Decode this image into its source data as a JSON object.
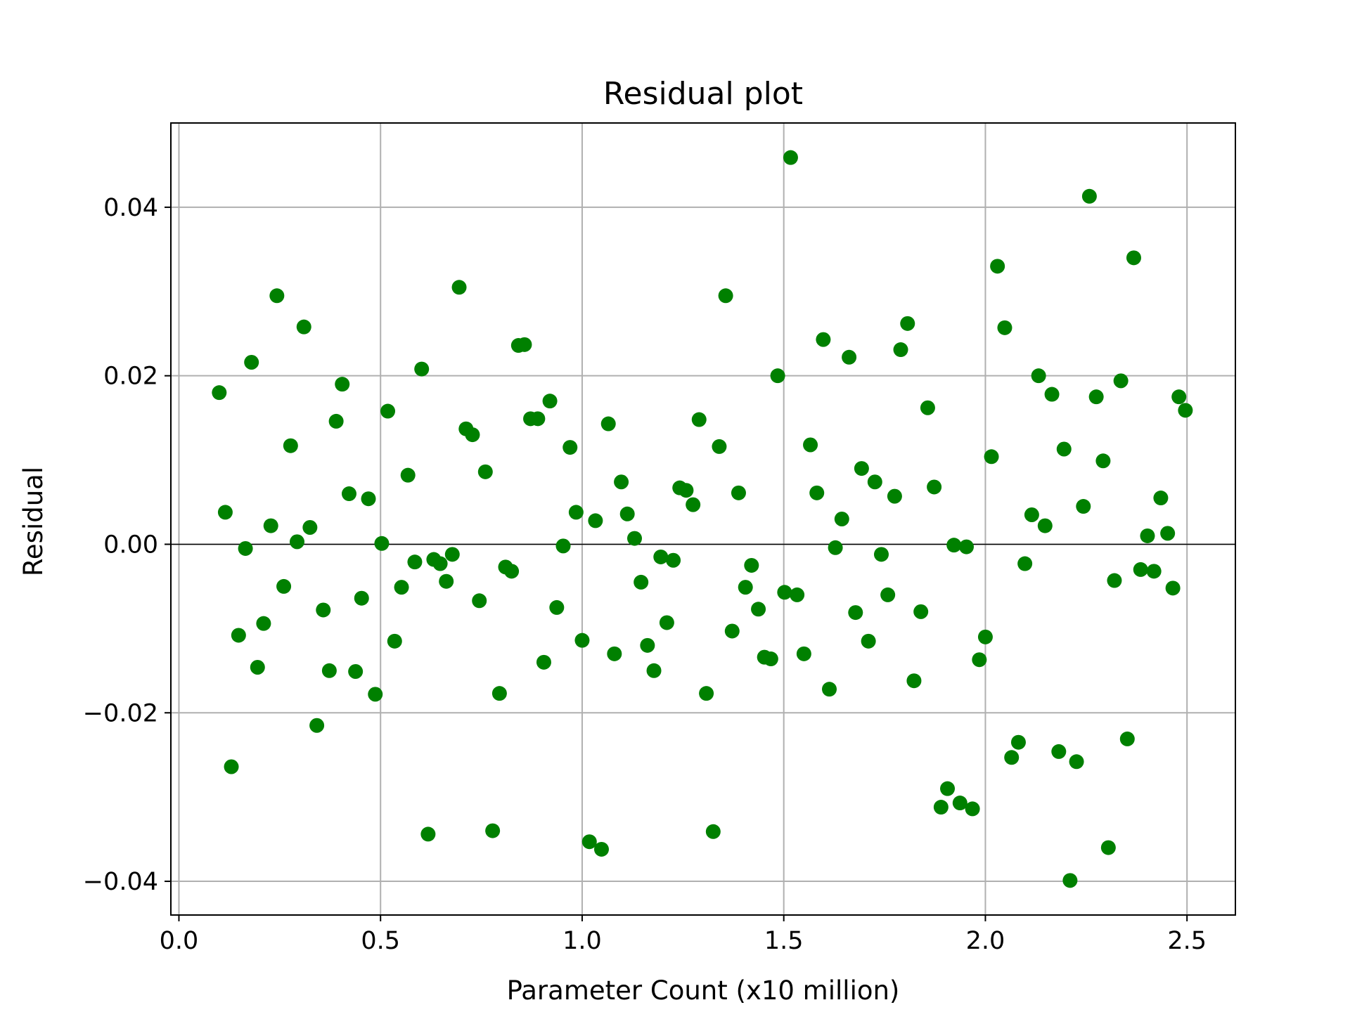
{
  "chart_data": {
    "type": "scatter",
    "title": "Residual plot",
    "xlabel": "Parameter Count (x10 million)",
    "ylabel": "Residual",
    "xlim": [
      -0.02,
      2.62
    ],
    "ylim": [
      -0.044,
      0.05
    ],
    "xticks": [
      0.0,
      0.5,
      1.0,
      1.5,
      2.0,
      2.5
    ],
    "xtick_labels": [
      "0.0",
      "0.5",
      "1.0",
      "1.5",
      "2.0",
      "2.5"
    ],
    "yticks": [
      -0.04,
      -0.02,
      0.0,
      0.02,
      0.04
    ],
    "ytick_labels": [
      "−0.04",
      "−0.02",
      "0.00",
      "0.02",
      "0.04"
    ],
    "grid": true,
    "reference_line_y": 0.0,
    "marker_color": "#008000",
    "reference_line_color": "#000000",
    "grid_color": "#b0b0b0",
    "points": [
      [
        0.1,
        0.018
      ],
      [
        0.115,
        0.0038
      ],
      [
        0.13,
        -0.0264
      ],
      [
        0.148,
        -0.0108
      ],
      [
        0.165,
        -0.0005
      ],
      [
        0.18,
        0.0216
      ],
      [
        0.195,
        -0.0146
      ],
      [
        0.21,
        -0.0094
      ],
      [
        0.228,
        0.0022
      ],
      [
        0.243,
        0.0295
      ],
      [
        0.26,
        -0.005
      ],
      [
        0.277,
        0.0117
      ],
      [
        0.293,
        0.0003
      ],
      [
        0.31,
        0.0258
      ],
      [
        0.325,
        0.002
      ],
      [
        0.342,
        -0.0215
      ],
      [
        0.358,
        -0.0078
      ],
      [
        0.373,
        -0.015
      ],
      [
        0.39,
        0.0146
      ],
      [
        0.405,
        0.019
      ],
      [
        0.422,
        0.006
      ],
      [
        0.438,
        -0.0151
      ],
      [
        0.453,
        -0.0064
      ],
      [
        0.47,
        0.0054
      ],
      [
        0.487,
        -0.0178
      ],
      [
        0.503,
        0.0001
      ],
      [
        0.518,
        0.0158
      ],
      [
        0.535,
        -0.0115
      ],
      [
        0.552,
        -0.0051
      ],
      [
        0.568,
        0.0082
      ],
      [
        0.585,
        -0.0021
      ],
      [
        0.602,
        0.0208
      ],
      [
        0.618,
        -0.0344
      ],
      [
        0.632,
        -0.0018
      ],
      [
        0.648,
        -0.0023
      ],
      [
        0.663,
        -0.0044
      ],
      [
        0.678,
        -0.0012
      ],
      [
        0.695,
        0.0305
      ],
      [
        0.712,
        0.0137
      ],
      [
        0.728,
        0.013
      ],
      [
        0.745,
        -0.0067
      ],
      [
        0.76,
        0.0086
      ],
      [
        0.778,
        -0.034
      ],
      [
        0.795,
        -0.0177
      ],
      [
        0.81,
        -0.0027
      ],
      [
        0.825,
        -0.0032
      ],
      [
        0.842,
        0.0236
      ],
      [
        0.857,
        0.0237
      ],
      [
        0.872,
        0.0149
      ],
      [
        0.89,
        0.0149
      ],
      [
        0.905,
        -0.014
      ],
      [
        0.92,
        0.017
      ],
      [
        0.937,
        -0.0075
      ],
      [
        0.953,
        -0.0002
      ],
      [
        0.97,
        0.0115
      ],
      [
        0.985,
        0.0038
      ],
      [
        1.0,
        -0.0114
      ],
      [
        1.018,
        -0.0353
      ],
      [
        1.033,
        0.0028
      ],
      [
        1.048,
        -0.0362
      ],
      [
        1.065,
        0.0143
      ],
      [
        1.08,
        -0.013
      ],
      [
        1.097,
        0.0074
      ],
      [
        1.112,
        0.0036
      ],
      [
        1.13,
        0.0007
      ],
      [
        1.146,
        -0.0045
      ],
      [
        1.162,
        -0.012
      ],
      [
        1.178,
        -0.015
      ],
      [
        1.195,
        -0.0015
      ],
      [
        1.21,
        -0.0093
      ],
      [
        1.226,
        -0.0019
      ],
      [
        1.242,
        0.0067
      ],
      [
        1.258,
        0.0064
      ],
      [
        1.275,
        0.0047
      ],
      [
        1.29,
        0.0148
      ],
      [
        1.308,
        -0.0177
      ],
      [
        1.325,
        -0.0341
      ],
      [
        1.34,
        0.0116
      ],
      [
        1.356,
        0.0295
      ],
      [
        1.372,
        -0.0103
      ],
      [
        1.388,
        0.0061
      ],
      [
        1.405,
        -0.0051
      ],
      [
        1.42,
        -0.0025
      ],
      [
        1.437,
        -0.0077
      ],
      [
        1.452,
        -0.0134
      ],
      [
        1.468,
        -0.0136
      ],
      [
        1.485,
        0.02
      ],
      [
        1.502,
        -0.0057
      ],
      [
        1.517,
        0.0459
      ],
      [
        1.533,
        -0.006
      ],
      [
        1.55,
        -0.013
      ],
      [
        1.566,
        0.0118
      ],
      [
        1.582,
        0.0061
      ],
      [
        1.598,
        0.0243
      ],
      [
        1.613,
        -0.0172
      ],
      [
        1.628,
        -0.0004
      ],
      [
        1.644,
        0.003
      ],
      [
        1.662,
        0.0222
      ],
      [
        1.678,
        -0.0081
      ],
      [
        1.693,
        0.009
      ],
      [
        1.71,
        -0.0115
      ],
      [
        1.726,
        0.0074
      ],
      [
        1.742,
        -0.0012
      ],
      [
        1.758,
        -0.006
      ],
      [
        1.775,
        0.0057
      ],
      [
        1.79,
        0.0231
      ],
      [
        1.807,
        0.0262
      ],
      [
        1.823,
        -0.0162
      ],
      [
        1.84,
        -0.008
      ],
      [
        1.857,
        0.0162
      ],
      [
        1.873,
        0.0068
      ],
      [
        1.89,
        -0.0312
      ],
      [
        1.906,
        -0.029
      ],
      [
        1.922,
        -0.0001
      ],
      [
        1.937,
        -0.0307
      ],
      [
        1.953,
        -0.0003
      ],
      [
        1.968,
        -0.0314
      ],
      [
        1.985,
        -0.0137
      ],
      [
        2.0,
        -0.011
      ],
      [
        2.015,
        0.0104
      ],
      [
        2.03,
        0.033
      ],
      [
        2.048,
        0.0257
      ],
      [
        2.065,
        -0.0253
      ],
      [
        2.082,
        -0.0235
      ],
      [
        2.098,
        -0.0023
      ],
      [
        2.115,
        0.0035
      ],
      [
        2.132,
        0.02
      ],
      [
        2.148,
        0.0022
      ],
      [
        2.165,
        0.0178
      ],
      [
        2.182,
        -0.0246
      ],
      [
        2.195,
        0.0113
      ],
      [
        2.21,
        -0.0399
      ],
      [
        2.226,
        -0.0258
      ],
      [
        2.243,
        0.0045
      ],
      [
        2.258,
        0.0413
      ],
      [
        2.275,
        0.0175
      ],
      [
        2.292,
        0.0099
      ],
      [
        2.305,
        -0.036
      ],
      [
        2.32,
        -0.0043
      ],
      [
        2.336,
        0.0194
      ],
      [
        2.352,
        -0.0231
      ],
      [
        2.368,
        0.034
      ],
      [
        2.385,
        -0.003
      ],
      [
        2.402,
        0.001
      ],
      [
        2.418,
        -0.0032
      ],
      [
        2.435,
        0.0055
      ],
      [
        2.452,
        0.0013
      ],
      [
        2.465,
        -0.0052
      ],
      [
        2.48,
        0.0175
      ],
      [
        2.496,
        0.0159
      ]
    ]
  }
}
